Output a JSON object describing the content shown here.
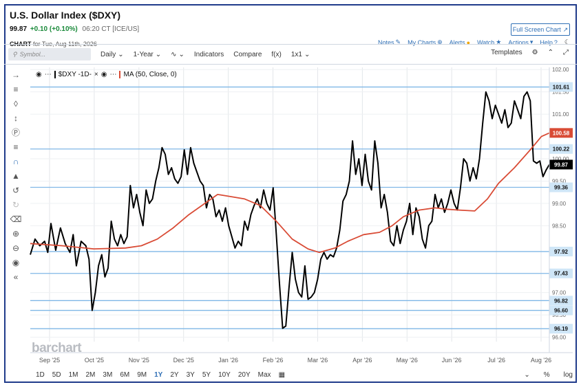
{
  "header": {
    "title": "U.S. Dollar Index ($DXY)",
    "last": "99.87",
    "change": "+0.10 (+0.10%)",
    "meta": "06:20 CT [ICE/US]",
    "fullscreen_label": "Full Screen Chart",
    "chart_label": "CHART",
    "chart_for": "for Tue, Aug 11th, 2026"
  },
  "links": {
    "notes": "Notes",
    "mycharts": "My Charts",
    "alerts": "Alerts",
    "watch": "Watch",
    "actions": "Actions",
    "help": "Help"
  },
  "toolbar": {
    "symbol_placeholder": "Symbol...",
    "daily": "Daily",
    "period": "1-Year",
    "indicators": "Indicators",
    "compare": "Compare",
    "fx": "f(x)",
    "layout": "1x1",
    "templates": "Templates"
  },
  "legend": {
    "series1": "$DXY -1D-",
    "series2": "MA (50, Close, 0)"
  },
  "logo": "barchart",
  "ranges": [
    "1D",
    "5D",
    "1M",
    "2M",
    "3M",
    "6M",
    "9M",
    "1Y",
    "2Y",
    "3Y",
    "5Y",
    "10Y",
    "20Y",
    "Max"
  ],
  "selected_range": "1Y",
  "bottom_right": {
    "pct": "%",
    "log": "log"
  },
  "colors": {
    "price": "#000000",
    "ma": "#d94b35",
    "hline": "#7fb7e6",
    "badge_blue": "#cfe6f7",
    "badge_red": "#d94b35",
    "accent": "#2f6fb5"
  },
  "chart_data": {
    "type": "line",
    "x_tick_labels": [
      "Sep '25",
      "Oct '25",
      "Nov '25",
      "Dec '25",
      "Jan '26",
      "Feb '26",
      "Mar '26",
      "Apr '26",
      "May '26",
      "Jun '26",
      "Jul '26",
      "Aug '26"
    ],
    "y_tick_labels": [
      "102.00",
      "101.50",
      "101.00",
      "100.00",
      "99.50",
      "99.00",
      "98.50",
      "97.00",
      "96.50",
      "96.00"
    ],
    "ylim": [
      95.9,
      102.05
    ],
    "horizontal_lines": [
      101.61,
      100.22,
      99.36,
      97.92,
      97.43,
      96.82,
      96.6,
      96.19
    ],
    "price_badges": {
      "ma_last": "100.58",
      "last": "99.87"
    },
    "series": [
      {
        "name": "$DXY -1D-",
        "color": "#000000",
        "points": [
          [
            0,
            97.85
          ],
          [
            3,
            98.2
          ],
          [
            6,
            98.05
          ],
          [
            9,
            98.15
          ],
          [
            11,
            97.9
          ],
          [
            13,
            98.55
          ],
          [
            16,
            97.95
          ],
          [
            19,
            98.45
          ],
          [
            22,
            98.1
          ],
          [
            25,
            97.9
          ],
          [
            27,
            98.3
          ],
          [
            29,
            97.6
          ],
          [
            32,
            98.15
          ],
          [
            35,
            98.05
          ],
          [
            37,
            97.75
          ],
          [
            39,
            96.6
          ],
          [
            41,
            97.0
          ],
          [
            43,
            97.6
          ],
          [
            45,
            97.85
          ],
          [
            47,
            97.35
          ],
          [
            49,
            97.55
          ],
          [
            51,
            98.6
          ],
          [
            53,
            98.2
          ],
          [
            55,
            98.05
          ],
          [
            57,
            98.3
          ],
          [
            59,
            98.1
          ],
          [
            61,
            98.25
          ],
          [
            63,
            99.4
          ],
          [
            65,
            98.9
          ],
          [
            67,
            99.2
          ],
          [
            69,
            98.8
          ],
          [
            71,
            98.5
          ],
          [
            73,
            99.3
          ],
          [
            75,
            99.0
          ],
          [
            77,
            99.1
          ],
          [
            79,
            99.5
          ],
          [
            81,
            99.8
          ],
          [
            83,
            100.25
          ],
          [
            85,
            100.1
          ],
          [
            87,
            99.65
          ],
          [
            89,
            99.8
          ],
          [
            91,
            99.55
          ],
          [
            93,
            99.45
          ],
          [
            95,
            99.6
          ],
          [
            97,
            100.2
          ],
          [
            99,
            99.65
          ],
          [
            101,
            100.25
          ],
          [
            103,
            99.9
          ],
          [
            105,
            99.7
          ],
          [
            107,
            99.5
          ],
          [
            109,
            99.4
          ],
          [
            111,
            98.9
          ],
          [
            113,
            99.2
          ],
          [
            115,
            99.1
          ],
          [
            117,
            98.7
          ],
          [
            119,
            98.85
          ],
          [
            121,
            98.6
          ],
          [
            123,
            98.9
          ],
          [
            125,
            98.5
          ],
          [
            127,
            98.25
          ],
          [
            129,
            98.0
          ],
          [
            131,
            98.15
          ],
          [
            133,
            98.05
          ],
          [
            135,
            98.6
          ],
          [
            137,
            98.4
          ],
          [
            139,
            98.75
          ],
          [
            141,
            98.95
          ],
          [
            143,
            99.1
          ],
          [
            145,
            98.9
          ],
          [
            147,
            99.3
          ],
          [
            149,
            99.0
          ],
          [
            151,
            98.85
          ],
          [
            153,
            99.35
          ],
          [
            155,
            98.3
          ],
          [
            157,
            97.2
          ],
          [
            159,
            96.2
          ],
          [
            161,
            96.25
          ],
          [
            163,
            97.1
          ],
          [
            165,
            97.9
          ],
          [
            167,
            97.3
          ],
          [
            169,
            97.0
          ],
          [
            171,
            96.9
          ],
          [
            173,
            97.6
          ],
          [
            175,
            96.85
          ],
          [
            177,
            96.9
          ],
          [
            179,
            97.0
          ],
          [
            181,
            97.3
          ],
          [
            183,
            97.75
          ],
          [
            185,
            97.9
          ],
          [
            187,
            97.75
          ],
          [
            189,
            97.85
          ],
          [
            191,
            97.8
          ],
          [
            193,
            98.0
          ],
          [
            195,
            98.4
          ],
          [
            197,
            99.05
          ],
          [
            199,
            99.2
          ],
          [
            201,
            99.5
          ],
          [
            203,
            100.4
          ],
          [
            205,
            99.65
          ],
          [
            207,
            100.0
          ],
          [
            209,
            99.4
          ],
          [
            211,
            100.1
          ],
          [
            213,
            99.5
          ],
          [
            215,
            99.3
          ],
          [
            217,
            100.4
          ],
          [
            219,
            99.9
          ],
          [
            221,
            98.9
          ],
          [
            223,
            99.2
          ],
          [
            225,
            98.8
          ],
          [
            227,
            98.15
          ],
          [
            229,
            98.05
          ],
          [
            231,
            98.5
          ],
          [
            233,
            98.1
          ],
          [
            235,
            98.4
          ],
          [
            237,
            98.6
          ],
          [
            239,
            99.0
          ],
          [
            241,
            98.3
          ],
          [
            243,
            98.9
          ],
          [
            245,
            98.7
          ],
          [
            247,
            98.2
          ],
          [
            249,
            98.0
          ],
          [
            251,
            98.5
          ],
          [
            253,
            98.6
          ],
          [
            255,
            99.2
          ],
          [
            257,
            98.9
          ],
          [
            259,
            99.1
          ],
          [
            261,
            98.8
          ],
          [
            263,
            99.0
          ],
          [
            265,
            99.3
          ],
          [
            267,
            99.0
          ],
          [
            269,
            98.85
          ],
          [
            271,
            99.35
          ],
          [
            273,
            100.0
          ],
          [
            275,
            99.9
          ],
          [
            277,
            99.5
          ],
          [
            279,
            99.8
          ],
          [
            281,
            99.55
          ],
          [
            283,
            100.0
          ],
          [
            285,
            100.8
          ],
          [
            287,
            101.5
          ],
          [
            289,
            101.3
          ],
          [
            291,
            100.9
          ],
          [
            293,
            101.2
          ],
          [
            295,
            101.0
          ],
          [
            297,
            100.8
          ],
          [
            299,
            101.1
          ],
          [
            301,
            100.7
          ],
          [
            303,
            100.8
          ],
          [
            305,
            101.3
          ],
          [
            307,
            101.1
          ],
          [
            309,
            100.9
          ],
          [
            311,
            101.4
          ],
          [
            313,
            101.5
          ],
          [
            315,
            101.3
          ],
          [
            317,
            99.95
          ],
          [
            319,
            99.9
          ],
          [
            321,
            99.95
          ],
          [
            323,
            99.6
          ],
          [
            325,
            99.75
          ],
          [
            327,
            99.87
          ]
        ]
      },
      {
        "name": "MA (50, Close, 0)",
        "color": "#d94b35",
        "points": [
          [
            0,
            98.1
          ],
          [
            20,
            98.05
          ],
          [
            40,
            97.98
          ],
          [
            60,
            98.0
          ],
          [
            70,
            98.05
          ],
          [
            80,
            98.2
          ],
          [
            90,
            98.45
          ],
          [
            100,
            98.75
          ],
          [
            110,
            99.0
          ],
          [
            118,
            99.2
          ],
          [
            125,
            99.16
          ],
          [
            135,
            99.1
          ],
          [
            145,
            98.95
          ],
          [
            155,
            98.6
          ],
          [
            165,
            98.2
          ],
          [
            175,
            97.98
          ],
          [
            182,
            97.9
          ],
          [
            192,
            98.0
          ],
          [
            200,
            98.15
          ],
          [
            210,
            98.3
          ],
          [
            220,
            98.35
          ],
          [
            228,
            98.5
          ],
          [
            235,
            98.7
          ],
          [
            245,
            98.85
          ],
          [
            255,
            98.9
          ],
          [
            262,
            98.87
          ],
          [
            270,
            98.85
          ],
          [
            280,
            98.83
          ],
          [
            288,
            99.1
          ],
          [
            295,
            99.45
          ],
          [
            305,
            99.8
          ],
          [
            315,
            100.2
          ],
          [
            322,
            100.5
          ],
          [
            327,
            100.58
          ]
        ]
      }
    ],
    "x_max": 327
  }
}
